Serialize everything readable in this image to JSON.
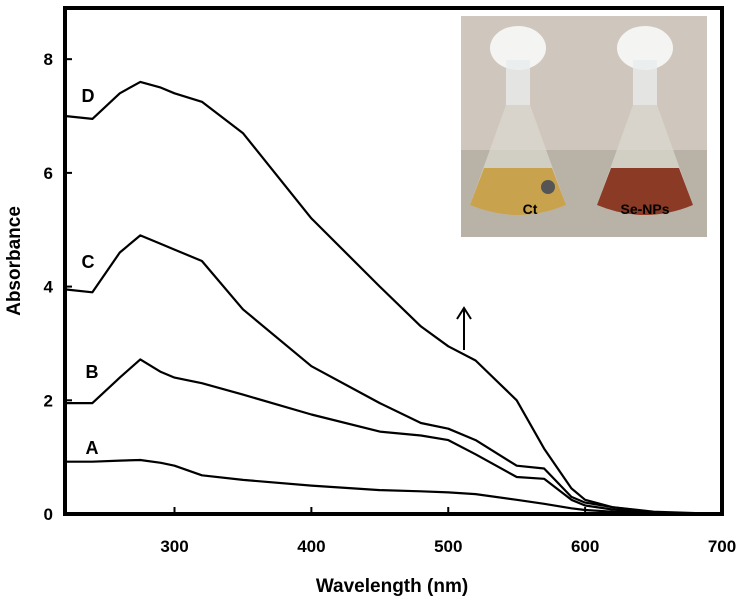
{
  "chart_data": {
    "type": "line",
    "xlabel": "Wavelength (nm)",
    "ylabel": "Absorbance",
    "x": [
      220,
      240,
      260,
      275,
      290,
      300,
      320,
      350,
      400,
      450,
      480,
      500,
      520,
      550,
      570,
      590,
      600,
      620,
      650,
      700
    ],
    "series": [
      {
        "name": "A",
        "color": "#000000",
        "values": [
          0.92,
          0.92,
          0.94,
          0.95,
          0.9,
          0.85,
          0.68,
          0.6,
          0.5,
          0.42,
          0.4,
          0.38,
          0.35,
          0.25,
          0.18,
          0.1,
          0.07,
          0.04,
          0.01,
          0
        ]
      },
      {
        "name": "B",
        "color": "#000000",
        "values": [
          1.95,
          1.95,
          2.4,
          2.72,
          2.5,
          2.4,
          2.3,
          2.1,
          1.75,
          1.45,
          1.38,
          1.3,
          1.05,
          0.65,
          0.62,
          0.25,
          0.15,
          0.08,
          0.02,
          0
        ]
      },
      {
        "name": "C",
        "color": "#000000",
        "values": [
          3.95,
          3.9,
          4.6,
          4.9,
          4.75,
          4.65,
          4.45,
          3.6,
          2.6,
          1.95,
          1.6,
          1.5,
          1.3,
          0.85,
          0.8,
          0.3,
          0.2,
          0.12,
          0.03,
          0
        ]
      },
      {
        "name": "D",
        "color": "#000000",
        "values": [
          7.0,
          6.95,
          7.4,
          7.6,
          7.5,
          7.4,
          7.25,
          6.7,
          5.2,
          4.0,
          3.3,
          2.95,
          2.7,
          2.0,
          1.15,
          0.45,
          0.25,
          0.12,
          0.04,
          0
        ]
      }
    ],
    "xlim": [
      220,
      700
    ],
    "xticks": [
      300,
      400,
      500,
      600,
      700
    ],
    "ylim": [
      0,
      8.9
    ],
    "yticks": [
      0,
      2,
      4,
      6,
      8
    ],
    "inset_labels": [
      "Ct",
      "Se-NPs"
    ]
  }
}
